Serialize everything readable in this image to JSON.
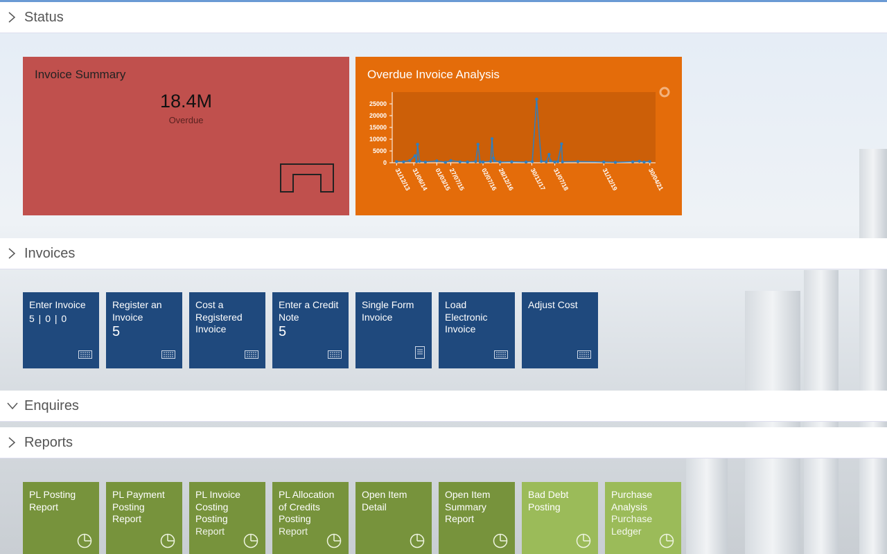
{
  "sections": [
    {
      "title": "Status"
    },
    {
      "title": "Invoices"
    },
    {
      "title": "Enquires"
    },
    {
      "title": "Reports"
    }
  ],
  "invoice_summary": {
    "title": "Invoice Summary",
    "value": "18.4M",
    "label": "Overdue"
  },
  "chart_data": {
    "type": "line",
    "title": "Overdue Invoice Analysis",
    "color": "#2e7fc0",
    "x": [
      "31/12/13",
      "15/03/14",
      "20/05/14",
      "15/07/14",
      "31/07/14",
      "10/08/14",
      "30/08/14",
      "01/11/14",
      "01/03/15",
      "01/06/15",
      "27/07/15",
      "01/11/15",
      "20/01/16",
      "15/04/16",
      "10/05/16",
      "01/06/16",
      "02/07/16",
      "20/09/16",
      "05/10/16",
      "20/10/16",
      "01/11/16",
      "28/12/16",
      "01/05/17",
      "30/09/17",
      "05/12/17",
      "20/01/18",
      "10/03/18",
      "01/05/18",
      "31/05/18",
      "15/06/18",
      "31/07/18",
      "01/09/18",
      "10/10/18",
      "20/10/18",
      "01/04/19",
      "31/12/19",
      "01/05/20",
      "01/11/20",
      "10/01/21",
      "01/03/21",
      "30/04/21"
    ],
    "values": [
      500,
      400,
      900,
      3000,
      500,
      7800,
      600,
      300,
      800,
      200,
      900,
      400,
      300,
      500,
      7800,
      400,
      300,
      600,
      10200,
      2000,
      800,
      300,
      400,
      300,
      500,
      27000,
      600,
      400,
      3500,
      800,
      300,
      500,
      8000,
      400,
      500,
      300,
      200,
      400,
      600,
      300,
      500
    ],
    "xlim": [
      "15/11/13",
      "30/06/21"
    ],
    "xticks": [
      "31/12/13",
      "31/06/14",
      "01/03/15",
      "27/07/15",
      "02/07/16",
      "28/12/16",
      "30/11/17",
      "31/07/18",
      "31/12/19",
      "30/04/21"
    ],
    "ylim": [
      0,
      30000
    ],
    "yticks": [
      0,
      5000,
      10000,
      15000,
      20000,
      25000
    ]
  },
  "invoices": [
    {
      "label": "Enter Invoice",
      "count": "5 | 0 | 0"
    },
    {
      "label": "Register an Invoice",
      "count": "5"
    },
    {
      "label": "Cost a Registered Invoice"
    },
    {
      "label": "Enter a Credit Note",
      "count": "5"
    },
    {
      "label": "Single Form Invoice"
    },
    {
      "label": "Load Electronic Invoice"
    },
    {
      "label": "Adjust Cost"
    }
  ],
  "reports": [
    {
      "label": "PL Posting Report"
    },
    {
      "label": "PL Payment Posting Report"
    },
    {
      "label": "PL Invoice Costing Posting",
      "sub": "Report"
    },
    {
      "label": "PL Allocation of Credits Posting",
      "sub": "Report"
    },
    {
      "label": "Open Item Detail"
    },
    {
      "label": "Open Item Summary Report"
    },
    {
      "label": "Bad Debt Posting"
    },
    {
      "label": "Purchase Analysis",
      "sub": "Purchase Ledger"
    }
  ]
}
